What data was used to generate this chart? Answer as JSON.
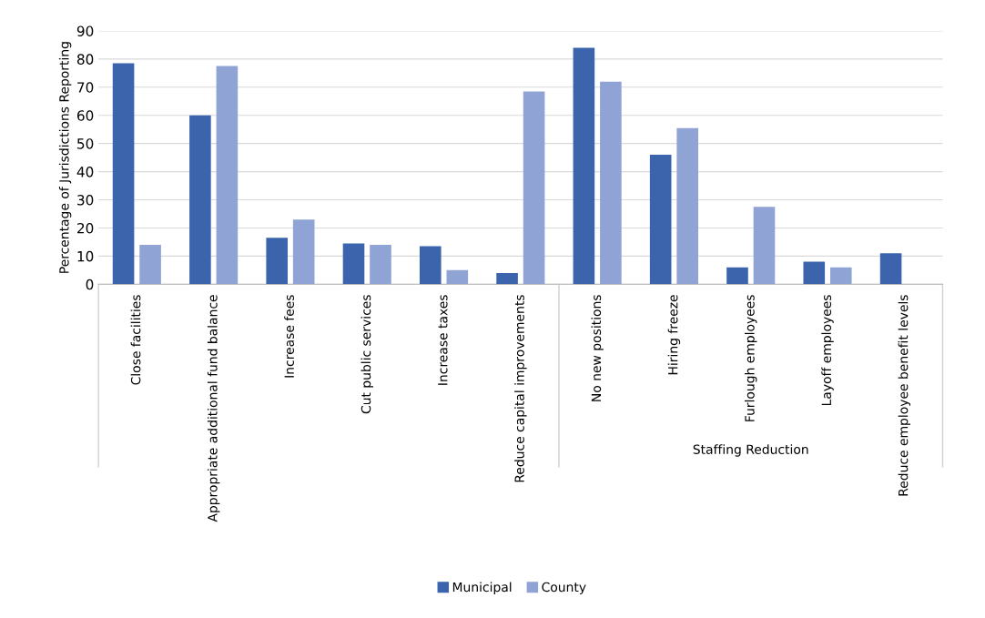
{
  "chart_data": {
    "type": "bar",
    "ylabel": "Percentage of Jurisdictions Reporting",
    "categories": [
      "Close facilities",
      "Appropriate additional fund balance",
      "Increase fees",
      "Cut public services",
      "Increase taxes",
      "Reduce capital improvements",
      "No new positions",
      "Hiring freeze",
      "Furlough employees",
      "Layoff employees",
      "Reduce employee benefit levels"
    ],
    "series": [
      {
        "name": "Municipal",
        "color": "#3b64ad",
        "values": [
          78.5,
          60,
          16.5,
          14.5,
          13.5,
          4,
          84,
          46,
          6,
          8,
          11
        ]
      },
      {
        "name": "County",
        "color": "#8fa3d4",
        "values": [
          14,
          77.5,
          23,
          14,
          5,
          68.5,
          72,
          55.5,
          27.5,
          6,
          null
        ]
      }
    ],
    "ylim": [
      0,
      90
    ],
    "yticks": [
      0,
      10,
      20,
      30,
      40,
      50,
      60,
      70,
      80,
      90
    ],
    "annotations": [
      "Staffing Reduction"
    ],
    "grid": "y",
    "legend": "bottom"
  }
}
